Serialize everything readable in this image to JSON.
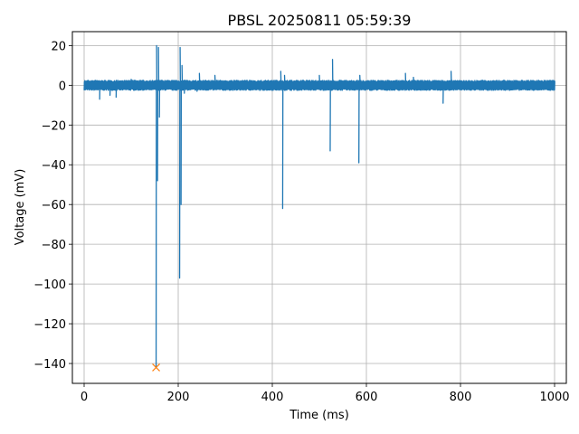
{
  "chart_data": {
    "type": "line",
    "title": "PBSL 20250811 05:59:39",
    "xlabel": "Time (ms)",
    "ylabel": "Voltage (mV)",
    "xlim": [
      -25,
      1025
    ],
    "ylim": [
      -150,
      27
    ],
    "grid": true,
    "xticks": [
      0,
      200,
      400,
      600,
      800,
      1000
    ],
    "yticks": [
      20,
      0,
      -20,
      -40,
      -60,
      -80,
      -100,
      -120,
      -140
    ],
    "xtick_labels": [
      "0",
      "200",
      "400",
      "600",
      "800",
      "1000"
    ],
    "ytick_labels": [
      "20",
      "0",
      "−20",
      "−40",
      "−60",
      "−80",
      "−100",
      "−120",
      "−140"
    ],
    "series": [
      {
        "color": "#1f77b4",
        "baseline": {
          "x_start": 0,
          "x_end": 1000,
          "y_min": -2.5,
          "y_max": 2.5
        },
        "spikes": [
          {
            "x": 33,
            "y": -7
          },
          {
            "x": 55,
            "y": -5
          },
          {
            "x": 68,
            "y": -6
          },
          {
            "x": 100,
            "y": 3
          },
          {
            "x": 153,
            "y": -142
          },
          {
            "x": 154,
            "y": 20
          },
          {
            "x": 156,
            "y": -48
          },
          {
            "x": 158,
            "y": 19
          },
          {
            "x": 160,
            "y": -16
          },
          {
            "x": 203,
            "y": -97
          },
          {
            "x": 204,
            "y": 19
          },
          {
            "x": 206,
            "y": -60
          },
          {
            "x": 208,
            "y": 10
          },
          {
            "x": 213,
            "y": -4
          },
          {
            "x": 240,
            "y": -3
          },
          {
            "x": 245,
            "y": 6
          },
          {
            "x": 278,
            "y": 5
          },
          {
            "x": 418,
            "y": 7
          },
          {
            "x": 422,
            "y": -62
          },
          {
            "x": 426,
            "y": 5
          },
          {
            "x": 500,
            "y": 5
          },
          {
            "x": 523,
            "y": -33
          },
          {
            "x": 528,
            "y": 13
          },
          {
            "x": 584,
            "y": -39
          },
          {
            "x": 586,
            "y": 5
          },
          {
            "x": 683,
            "y": 6
          },
          {
            "x": 700,
            "y": 4
          },
          {
            "x": 763,
            "y": -9
          },
          {
            "x": 780,
            "y": 7
          }
        ]
      }
    ],
    "markers": [
      {
        "x": 153,
        "y": -142,
        "symbol": "x",
        "color": "#ff7f0e"
      }
    ]
  }
}
